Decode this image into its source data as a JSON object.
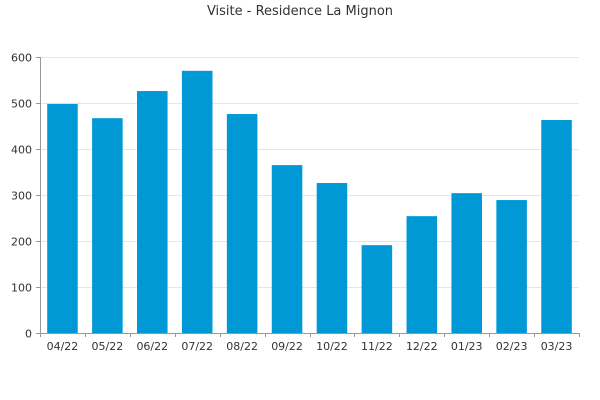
{
  "chart_data": {
    "type": "bar",
    "title": "Visite - Residence La Mignon",
    "xlabel": "",
    "ylabel": "",
    "categories": [
      "04/22",
      "05/22",
      "06/22",
      "07/22",
      "08/22",
      "09/22",
      "10/22",
      "11/22",
      "12/22",
      "01/23",
      "02/23",
      "03/23"
    ],
    "values": [
      498,
      467,
      526,
      570,
      476,
      365,
      326,
      191,
      254,
      304,
      289,
      463
    ],
    "ylim": [
      0,
      600
    ],
    "yticks": [
      0,
      100,
      200,
      300,
      400,
      500,
      600
    ],
    "grid": true,
    "legend": "none",
    "bar_color": "#0099d6"
  }
}
